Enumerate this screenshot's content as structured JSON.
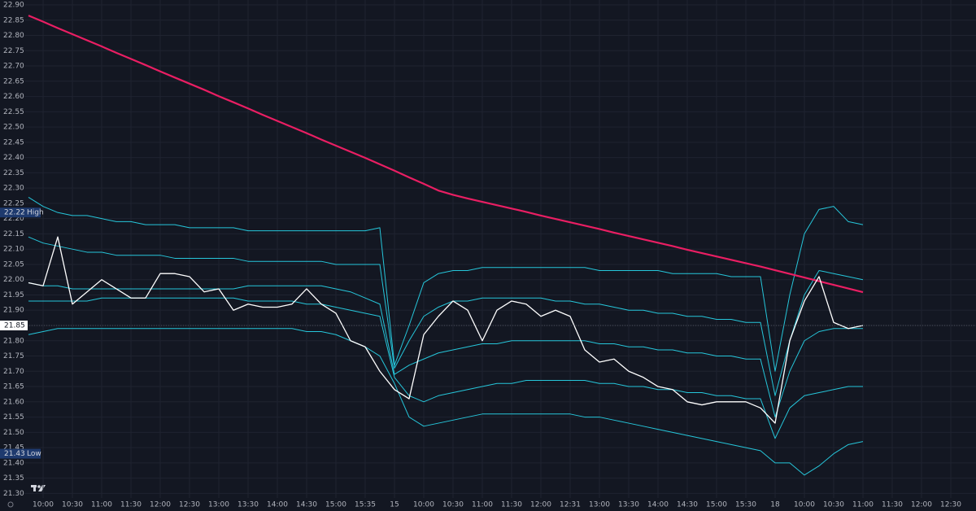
{
  "chart_data": {
    "type": "line",
    "categories": [
      null,
      "10:00",
      null,
      "10:30",
      null,
      "11:00",
      null,
      "11:30",
      null,
      "12:00",
      null,
      "12:30",
      null,
      "13:00",
      null,
      "13:30",
      null,
      "14:00",
      null,
      "14:30",
      null,
      "15:00",
      null,
      "15:35",
      null,
      "15",
      null,
      "10:00",
      null,
      "10:30",
      null,
      "11:00",
      null,
      "11:30",
      null,
      "12:00",
      null,
      "12:31",
      null,
      "13:00",
      null,
      "13:30",
      null,
      "14:00",
      null,
      "14:30",
      null,
      "15:00",
      null,
      "15:30",
      null,
      "18",
      null,
      "10:00",
      null,
      "10:30",
      null,
      "11:00",
      null,
      "11:30",
      null,
      "12:00",
      null,
      "12:30",
      null
    ],
    "series": [
      {
        "color": "#26c6da",
        "values": [
          22.27,
          22.24,
          22.22,
          22.21,
          22.21,
          22.2,
          22.19,
          22.19,
          22.18,
          22.18,
          22.18,
          22.17,
          22.17,
          22.17,
          22.17,
          22.16,
          22.16,
          22.16,
          22.16,
          22.16,
          22.16,
          22.16,
          22.16,
          22.16,
          22.17,
          21.72,
          21.85,
          21.99,
          22.02,
          22.03,
          22.03,
          22.04,
          22.04,
          22.04,
          22.04,
          22.04,
          22.04,
          22.04,
          22.04,
          22.03,
          22.03,
          22.03,
          22.03,
          22.03,
          22.02,
          22.02,
          22.02,
          22.02,
          22.01,
          22.01,
          22.01,
          21.7,
          21.95,
          22.15,
          22.23,
          22.24,
          22.19,
          22.18,
          null,
          null,
          null,
          null,
          null,
          null,
          null
        ]
      },
      {
        "color": "#26c6da",
        "values": [
          22.14,
          22.12,
          22.11,
          22.1,
          22.09,
          22.09,
          22.08,
          22.08,
          22.08,
          22.08,
          22.07,
          22.07,
          22.07,
          22.07,
          22.07,
          22.06,
          22.06,
          22.06,
          22.06,
          22.06,
          22.06,
          22.05,
          22.05,
          22.05,
          22.05,
          21.71,
          21.8,
          21.88,
          21.91,
          21.93,
          21.93,
          21.94,
          21.94,
          21.94,
          21.94,
          21.94,
          21.93,
          21.93,
          21.92,
          21.92,
          21.91,
          21.9,
          21.9,
          21.89,
          21.89,
          21.88,
          21.88,
          21.87,
          21.87,
          21.86,
          21.86,
          21.62,
          21.8,
          21.95,
          22.03,
          22.02,
          22.01,
          22.0,
          null,
          null,
          null,
          null,
          null,
          null,
          null
        ]
      },
      {
        "color": "#26c6da",
        "values": [
          21.99,
          21.98,
          21.98,
          21.97,
          21.97,
          21.97,
          21.97,
          21.97,
          21.97,
          21.97,
          21.97,
          21.97,
          21.97,
          21.97,
          21.97,
          21.98,
          21.98,
          21.98,
          21.98,
          21.98,
          21.98,
          21.97,
          21.96,
          21.94,
          21.92,
          21.69,
          21.72,
          21.74,
          21.76,
          21.77,
          21.78,
          21.79,
          21.79,
          21.8,
          21.8,
          21.8,
          21.8,
          21.8,
          21.8,
          21.79,
          21.79,
          21.78,
          21.78,
          21.77,
          21.77,
          21.76,
          21.76,
          21.75,
          21.75,
          21.74,
          21.74,
          21.55,
          21.7,
          21.8,
          21.83,
          21.84,
          21.84,
          21.84,
          null,
          null,
          null,
          null,
          null,
          null,
          null
        ]
      },
      {
        "color": "#26c6da",
        "values": [
          21.93,
          21.93,
          21.93,
          21.93,
          21.93,
          21.94,
          21.94,
          21.94,
          21.94,
          21.94,
          21.94,
          21.94,
          21.94,
          21.94,
          21.94,
          21.93,
          21.93,
          21.93,
          21.93,
          21.92,
          21.92,
          21.91,
          21.9,
          21.89,
          21.88,
          21.68,
          21.62,
          21.6,
          21.62,
          21.63,
          21.64,
          21.65,
          21.66,
          21.66,
          21.67,
          21.67,
          21.67,
          21.67,
          21.67,
          21.66,
          21.66,
          21.65,
          21.65,
          21.64,
          21.64,
          21.63,
          21.63,
          21.62,
          21.62,
          21.61,
          21.61,
          21.48,
          21.58,
          21.62,
          21.63,
          21.64,
          21.65,
          21.65,
          null,
          null,
          null,
          null,
          null,
          null,
          null
        ]
      },
      {
        "color": "#26c6da",
        "values": [
          21.82,
          21.83,
          21.84,
          21.84,
          21.84,
          21.84,
          21.84,
          21.84,
          21.84,
          21.84,
          21.84,
          21.84,
          21.84,
          21.84,
          21.84,
          21.84,
          21.84,
          21.84,
          21.84,
          21.83,
          21.83,
          21.82,
          21.8,
          21.78,
          21.75,
          21.66,
          21.55,
          21.52,
          21.53,
          21.54,
          21.55,
          21.56,
          21.56,
          21.56,
          21.56,
          21.56,
          21.56,
          21.56,
          21.55,
          21.55,
          21.54,
          21.53,
          21.52,
          21.51,
          21.5,
          21.49,
          21.48,
          21.47,
          21.46,
          21.45,
          21.44,
          21.4,
          21.4,
          21.36,
          21.39,
          21.43,
          21.46,
          21.47,
          null,
          null,
          null,
          null,
          null,
          null,
          null
        ]
      },
      {
        "color": "#e91e63",
        "values": [
          22.865,
          22.845,
          22.824,
          22.804,
          22.784,
          22.764,
          22.743,
          22.723,
          22.703,
          22.682,
          22.662,
          22.642,
          22.622,
          22.601,
          22.581,
          22.561,
          22.54,
          22.52,
          22.5,
          22.48,
          22.459,
          22.439,
          22.419,
          22.399,
          22.378,
          22.357,
          22.335,
          22.314,
          22.292,
          22.278,
          22.266,
          22.255,
          22.244,
          22.233,
          22.222,
          22.21,
          22.199,
          22.188,
          22.177,
          22.166,
          22.154,
          22.143,
          22.132,
          22.121,
          22.11,
          22.098,
          22.087,
          22.076,
          22.065,
          22.054,
          22.043,
          22.031,
          22.019,
          22.007,
          21.995,
          21.983,
          21.971,
          21.959,
          null,
          null,
          null,
          null,
          null,
          null,
          null
        ]
      },
      {
        "color": "#ffffff",
        "values": [
          21.99,
          21.98,
          22.14,
          21.92,
          21.96,
          22.0,
          21.97,
          21.94,
          21.94,
          22.02,
          22.02,
          22.01,
          21.96,
          21.97,
          21.9,
          21.92,
          21.91,
          21.91,
          21.92,
          21.97,
          21.92,
          21.89,
          21.8,
          21.78,
          21.7,
          21.64,
          21.61,
          21.82,
          21.88,
          21.93,
          21.9,
          21.8,
          21.9,
          21.93,
          21.92,
          21.88,
          21.9,
          21.88,
          21.77,
          21.73,
          21.74,
          21.7,
          21.68,
          21.65,
          21.64,
          21.6,
          21.59,
          21.6,
          21.6,
          21.6,
          21.58,
          21.53,
          21.8,
          21.93,
          22.01,
          21.86,
          21.84,
          21.85,
          null,
          null,
          null,
          null,
          null,
          null,
          null
        ]
      }
    ],
    "ylim": [
      21.285,
      22.916
    ],
    "yticks": [
      {
        "value": 22.9,
        "label": "22.90"
      },
      22.85,
      {
        "value": 22.8,
        "label": "22.80"
      },
      22.75,
      {
        "value": 22.7,
        "label": "22.70"
      },
      22.65,
      {
        "value": 22.6,
        "label": "22.60"
      },
      22.55,
      {
        "value": 22.5,
        "label": "22.50"
      },
      22.45,
      {
        "value": 22.4,
        "label": "22.40"
      },
      22.35,
      {
        "value": 22.3,
        "label": "22.30"
      },
      22.25,
      {
        "value": 22.2,
        "label": "22.20"
      },
      22.15,
      {
        "value": 22.1,
        "label": "22.10"
      },
      22.05,
      {
        "value": 22.0,
        "label": "22.00"
      },
      21.95,
      {
        "value": 21.9,
        "label": "21.90"
      },
      21.85,
      {
        "value": 21.8,
        "label": "21.80"
      },
      21.75,
      {
        "value": 21.7,
        "label": "21.70"
      },
      21.65,
      {
        "value": 21.6,
        "label": "21.60"
      },
      21.55,
      {
        "value": 21.5,
        "label": "21.50"
      },
      21.45,
      {
        "value": 21.4,
        "label": "21.40"
      },
      21.35,
      {
        "value": 21.3,
        "label": "21.30"
      }
    ],
    "grid": true,
    "markers": [
      {
        "value": 22.22,
        "text": "High"
      },
      {
        "value": 21.43,
        "text": "Low"
      }
    ],
    "last_price": 21.85
  }
}
